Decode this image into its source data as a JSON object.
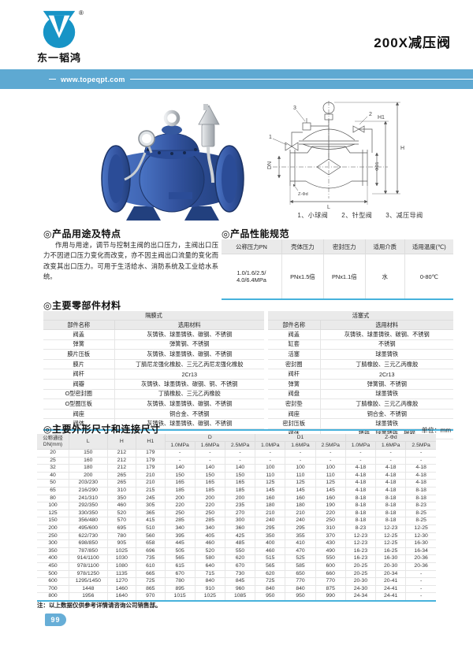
{
  "header": {
    "company": "东一韬鸿",
    "registered_mark": "®",
    "title": "200X减压阀",
    "website": "www.topeqpt.com"
  },
  "diagram": {
    "caption": "1、小球阀　　2、针型阀　　3、减压导阀",
    "labels": {
      "h": "H",
      "h1": "H1",
      "dn": "DN",
      "d1": "ΦD1",
      "l": "L",
      "zd": "Z-Φd",
      "c1": "1",
      "c2": "2",
      "c3": "3"
    }
  },
  "usage": {
    "heading": "◎产品用途及特点",
    "body": "作用与用途，调节与控制主阀的出口压力，主阀出口压力不因进口压力变化而改变，亦不因主阀出口流量的变化而改变其出口压力。可用于生活给水、消防系统及工业给水系统。"
  },
  "performance": {
    "heading": "◎产品性能规范",
    "columns": [
      "公称压力PN",
      "壳体压力",
      "密封压力",
      "适用介质",
      "适用温度(℃)"
    ],
    "row": [
      "1.0/1.6/2.5/\n4.0/6.4MPa",
      "PNx1.5倍",
      "PNx1.1倍",
      "水",
      "0-80℃"
    ]
  },
  "materials": {
    "heading": "◎主要零部件材料",
    "tables": [
      {
        "type": "隔膜式",
        "columns": [
          "部件名称",
          "选用材料"
        ],
        "rows": [
          [
            "阀盖",
            "灰铸铁、球墨铸铁、碳钢、不锈钢"
          ],
          [
            "弹簧",
            "弹簧钢、不锈钢"
          ],
          [
            "膜片压板",
            "灰铸铁、球墨铸铁、碳钢、不锈钢"
          ],
          [
            "膜片",
            "丁腈尼龙强化橡胶、三元乙丙尼龙强化橡胶"
          ],
          [
            "阀杆",
            "2Cr13"
          ],
          [
            "阀瓣",
            "灰铸铁、球墨铸铁、碳钢、铜、不锈钢"
          ],
          [
            "O型密封圈",
            "丁腈橡胶、三元乙丙橡胶"
          ],
          [
            "O型圈压板",
            "灰铸铁、球墨铸铁、碳钢、不锈钢"
          ],
          [
            "阀座",
            "铜合金、不锈钢"
          ],
          [
            "阀体",
            "灰铸铁、球墨铸铁、碳钢、不锈钢"
          ],
          [
            "",
            ""
          ]
        ]
      },
      {
        "type": "活塞式",
        "columns": [
          "部件名称",
          "选用材料"
        ],
        "rows": [
          [
            "阀盖",
            "灰铸铁、球墨铸铁、碳钢、不锈钢"
          ],
          [
            "缸套",
            "不锈钢"
          ],
          [
            "活塞",
            "球墨铸铁"
          ],
          [
            "密封圈",
            "丁腈橡胶、三元乙丙橡胶"
          ],
          [
            "阀杆",
            "2Cr13"
          ],
          [
            "弹簧",
            "弹簧钢、不锈钢"
          ],
          [
            "阀盘",
            "球墨铸铁"
          ],
          [
            "密封垫",
            "丁腈橡胶、三元乙丙橡胶"
          ],
          [
            "阀座",
            "铜合金、不锈钢"
          ],
          [
            "密封压板",
            "球墨铸铁"
          ],
          [
            "阀体",
            "铸铁、球墨铸铁、碳钢"
          ]
        ]
      }
    ]
  },
  "dimensions": {
    "heading": "◎主要外形尺寸和连接尺寸",
    "unit": "单位：mm",
    "header": {
      "dn": "公称通径\nDN(mm)",
      "l": "L",
      "h": "H",
      "h1": "H1",
      "groups": [
        "D",
        "D1",
        "Z-Φd"
      ],
      "sub": [
        "1.0MPa",
        "1.6MPa",
        "2.5MPa"
      ]
    },
    "rows": [
      [
        "20",
        "150",
        "212",
        "179",
        "-",
        "-",
        "-",
        "-",
        "-",
        "-",
        "-",
        "-",
        "-"
      ],
      [
        "25",
        "160",
        "212",
        "179",
        "-",
        "-",
        "-",
        "-",
        "-",
        "-",
        "-",
        "-",
        "-"
      ],
      [
        "32",
        "180",
        "212",
        "179",
        "140",
        "140",
        "140",
        "100",
        "100",
        "100",
        "4-18",
        "4-18",
        "4-18"
      ],
      [
        "40",
        "200",
        "265",
        "210",
        "150",
        "150",
        "150",
        "110",
        "110",
        "110",
        "4-18",
        "4-18",
        "4-18"
      ],
      [
        "50",
        "203/230",
        "265",
        "210",
        "165",
        "165",
        "165",
        "125",
        "125",
        "125",
        "4-18",
        "4-18",
        "4-18"
      ],
      [
        "65",
        "216/290",
        "310",
        "215",
        "185",
        "185",
        "185",
        "145",
        "145",
        "145",
        "4-18",
        "4-18",
        "8-18"
      ],
      [
        "80",
        "241/310",
        "350",
        "245",
        "200",
        "200",
        "200",
        "160",
        "160",
        "160",
        "8-18",
        "8-18",
        "8-18"
      ],
      [
        "100",
        "292/350",
        "460",
        "305",
        "220",
        "220",
        "235",
        "180",
        "180",
        "190",
        "8-18",
        "8-18",
        "8-23"
      ],
      [
        "125",
        "330/350",
        "520",
        "365",
        "250",
        "250",
        "270",
        "210",
        "210",
        "220",
        "8-18",
        "8-18",
        "8-25"
      ],
      [
        "150",
        "356/480",
        "570",
        "415",
        "285",
        "285",
        "300",
        "240",
        "240",
        "250",
        "8-18",
        "8-18",
        "8-25"
      ],
      [
        "200",
        "495/600",
        "695",
        "510",
        "340",
        "340",
        "360",
        "295",
        "295",
        "310",
        "8-23",
        "12-23",
        "12-25"
      ],
      [
        "250",
        "622/730",
        "780",
        "560",
        "395",
        "405",
        "425",
        "350",
        "355",
        "370",
        "12-23",
        "12-25",
        "12-30"
      ],
      [
        "300",
        "698/850",
        "905",
        "658",
        "445",
        "460",
        "485",
        "400",
        "410",
        "430",
        "12-23",
        "12-25",
        "16-30"
      ],
      [
        "350",
        "787/850",
        "1025",
        "696",
        "505",
        "520",
        "550",
        "460",
        "470",
        "490",
        "16-23",
        "16-25",
        "16-34"
      ],
      [
        "400",
        "914/1100",
        "1030",
        "735",
        "565",
        "580",
        "620",
        "515",
        "525",
        "550",
        "16-23",
        "16-30",
        "20-36"
      ],
      [
        "450",
        "978/1100",
        "1080",
        "610",
        "615",
        "640",
        "670",
        "565",
        "585",
        "600",
        "20-25",
        "20-30",
        "20-36"
      ],
      [
        "500",
        "978/1250",
        "1135",
        "665",
        "670",
        "715",
        "730",
        "620",
        "650",
        "660",
        "20-25",
        "20-34",
        "-"
      ],
      [
        "600",
        "1295/1450",
        "1270",
        "725",
        "780",
        "840",
        "845",
        "725",
        "770",
        "770",
        "20-30",
        "20-41",
        "-"
      ],
      [
        "700",
        "1448",
        "1460",
        "865",
        "895",
        "910",
        "960",
        "840",
        "840",
        "875",
        "24-30",
        "24-41",
        "-"
      ],
      [
        "800",
        "1956",
        "1640",
        "970",
        "1015",
        "1025",
        "1085",
        "950",
        "950",
        "990",
        "24-34",
        "24-41",
        "-"
      ]
    ]
  },
  "note": "注：以上数据仅供参考详情请咨询公司销售部。",
  "footer": {
    "page": "99"
  },
  "colors": {
    "banner": "#5ea9d2",
    "logo": "#1794c6",
    "accent_line": "#47b2dc",
    "table_header_bg": "#eaeaea",
    "badge": "#67aed7",
    "valve_blue": "#33539f"
  }
}
